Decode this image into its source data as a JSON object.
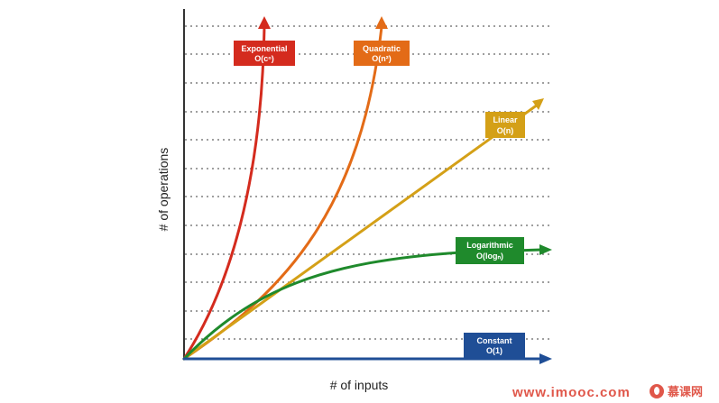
{
  "axes": {
    "xlabel": "# of inputs",
    "ylabel": "# of operations"
  },
  "curves": [
    {
      "id": "exponential",
      "title": "Exponential",
      "notation": "O(cⁿ)",
      "color": "#d42b1e"
    },
    {
      "id": "quadratic",
      "title": "Quadratic",
      "notation": "O(n²)",
      "color": "#e36b17"
    },
    {
      "id": "linear",
      "title": "Linear",
      "notation": "O(n)",
      "color": "#d4a017"
    },
    {
      "id": "logarithmic",
      "title": "Logarithmic",
      "notation": "O(logₙ)",
      "color": "#1f8a2c"
    },
    {
      "id": "constant",
      "title": "Constant",
      "notation": "O(1)",
      "color": "#1f4e96"
    }
  ],
  "watermark": {
    "site": "www.imooc.com",
    "brand": "慕课网",
    "color": "#e0574a"
  }
}
